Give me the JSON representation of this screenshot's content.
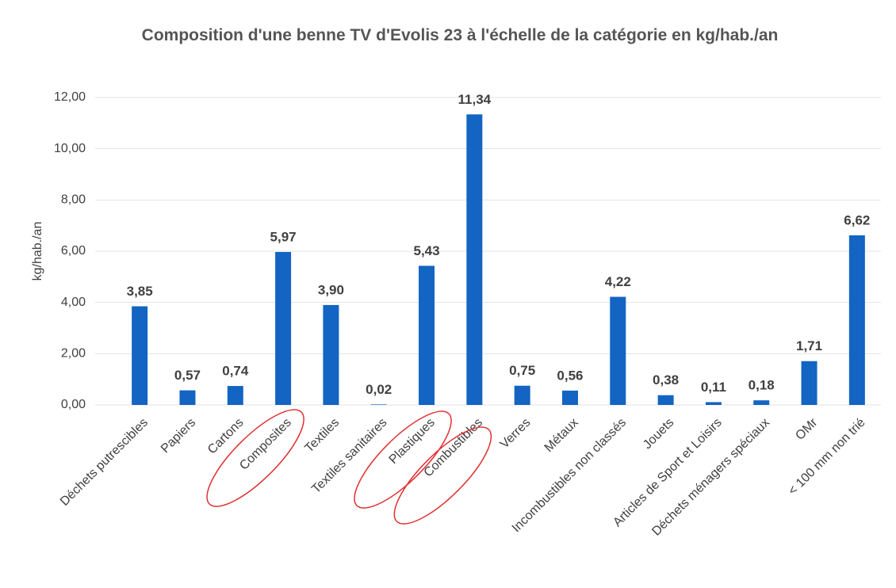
{
  "chart_data": {
    "type": "bar",
    "title": "Composition d'une benne TV d'Evolis 23 à l'échelle de la catégorie en kg/hab./an",
    "y_label": "kg/hab./an",
    "categories": [
      "Déchets putrescibles",
      "Papiers",
      "Cartons",
      "Composites",
      "Textiles",
      "Textiles sanitaires",
      "Plastiques",
      "Combustibles",
      "Verres",
      "Métaux",
      "Incombustibles non classés",
      "Jouets",
      "Articles de Sport et Loisirs",
      "Déchets ménagers spéciaux",
      "OMr",
      "< 100 mm non trié"
    ],
    "values": [
      3.85,
      0.57,
      0.74,
      5.97,
      3.9,
      0.02,
      5.43,
      11.34,
      0.75,
      0.56,
      4.22,
      0.38,
      0.11,
      0.18,
      1.71,
      6.62
    ],
    "value_labels": [
      "3,85",
      "0,57",
      "0,74",
      "5,97",
      "3,90",
      "0,02",
      "5,43",
      "11,34",
      "0,75",
      "0,56",
      "4,22",
      "0,38",
      "0,11",
      "0,18",
      "1,71",
      "6,62"
    ],
    "color": "#1364c3",
    "ylim": [
      0,
      12
    ],
    "yticks": [
      {
        "value": 0,
        "label": "0,00"
      },
      {
        "value": 2,
        "label": "2,00"
      },
      {
        "value": 4,
        "label": "4,00"
      },
      {
        "value": 6,
        "label": "6,00"
      },
      {
        "value": 8,
        "label": "8,00"
      },
      {
        "value": 10,
        "label": "10,00"
      },
      {
        "value": 12,
        "label": "12,00"
      }
    ],
    "grid": true
  }
}
